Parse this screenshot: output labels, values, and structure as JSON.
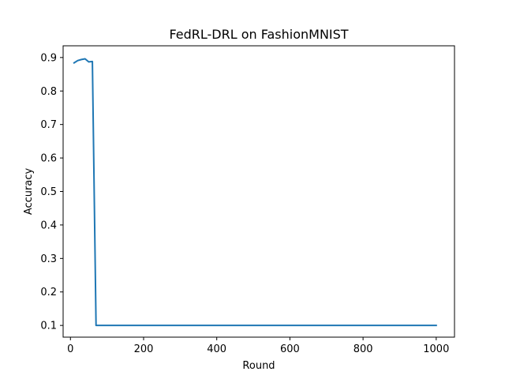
{
  "chart_data": {
    "type": "line",
    "title": "FedRL-DRL on FashionMNIST",
    "xlabel": "Round",
    "ylabel": "Accuracy",
    "xlim": [
      -20,
      1050
    ],
    "ylim": [
      0.065,
      0.935
    ],
    "xticks": [
      0,
      200,
      400,
      600,
      800,
      1000
    ],
    "yticks": [
      0.1,
      0.2,
      0.3,
      0.4,
      0.5,
      0.6,
      0.7,
      0.8,
      0.9
    ],
    "grid": false,
    "legend": "none",
    "series": [
      {
        "color": "#1f77b4",
        "x": [
          10,
          20,
          30,
          40,
          50,
          60,
          70,
          1000
        ],
        "y": [
          0.884,
          0.891,
          0.894,
          0.896,
          0.887,
          0.888,
          0.1,
          0.1
        ]
      }
    ]
  }
}
